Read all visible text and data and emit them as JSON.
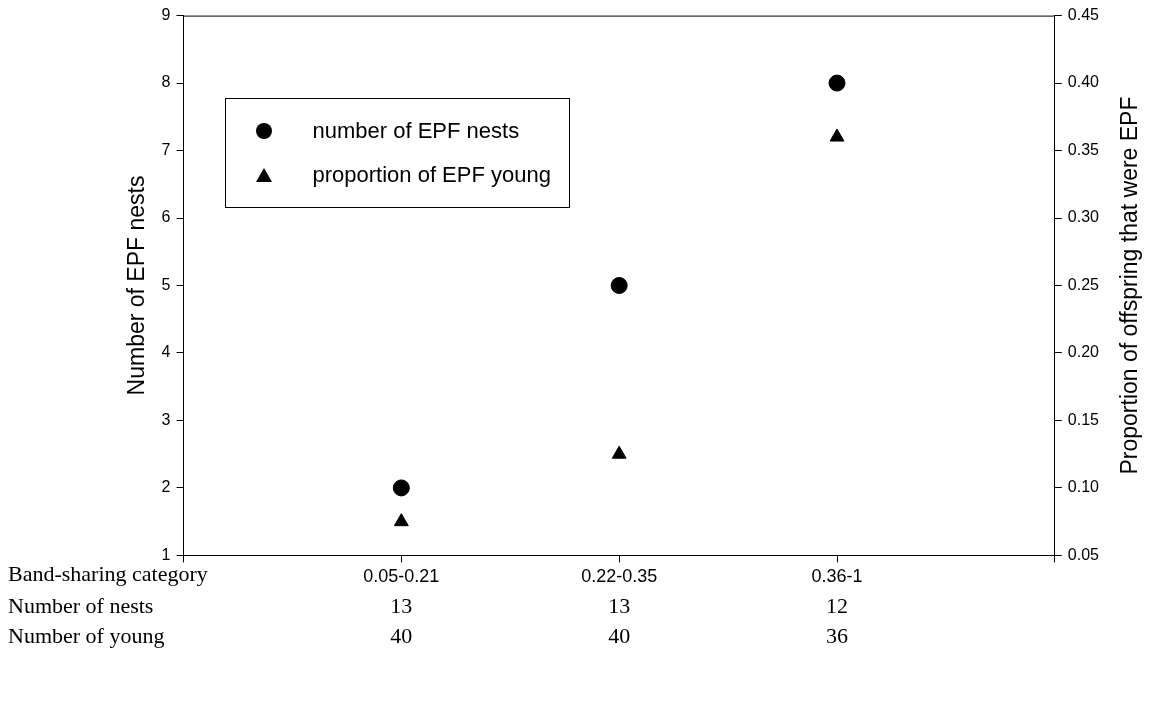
{
  "chart_data": {
    "type": "scatter",
    "ylabel": "Number of EPF nests",
    "y2label": "Proportion of offspring that were EPF",
    "categories": [
      null,
      "0.05-0.21",
      "0.22-0.35",
      "0.36-1",
      null
    ],
    "series": [
      {
        "name": "number of EPF nests",
        "color": "#000000",
        "marker": "circle",
        "values": [
          null,
          2,
          5,
          8,
          null
        ]
      },
      {
        "name": "proportion of EPF young",
        "color": "#000000",
        "marker": "triangle",
        "axis": "y2",
        "values": [
          null,
          0.075,
          0.125,
          0.36,
          null
        ]
      }
    ],
    "ylim": [
      1,
      9
    ],
    "yticks": [
      1,
      2,
      3,
      4,
      5,
      6,
      7,
      8,
      9
    ],
    "y2lim": [
      0.05,
      0.45
    ],
    "y2ticks": [
      {
        "value": 0.05,
        "label": "0.05"
      },
      {
        "value": 0.1,
        "label": "0.10"
      },
      {
        "value": 0.15,
        "label": "0.15"
      },
      {
        "value": 0.2,
        "label": "0.20"
      },
      {
        "value": 0.25,
        "label": "0.25"
      },
      {
        "value": 0.3,
        "label": "0.30"
      },
      {
        "value": 0.35,
        "label": "0.35"
      },
      {
        "value": 0.4,
        "label": "0.40"
      },
      {
        "value": 0.45,
        "label": "0.45"
      }
    ],
    "grid": false,
    "legend": "top left",
    "annotations": [
      "Band-sharing category",
      "Number of nests",
      "13",
      "13",
      "12",
      "Number of young",
      "40",
      "40",
      "36"
    ]
  }
}
